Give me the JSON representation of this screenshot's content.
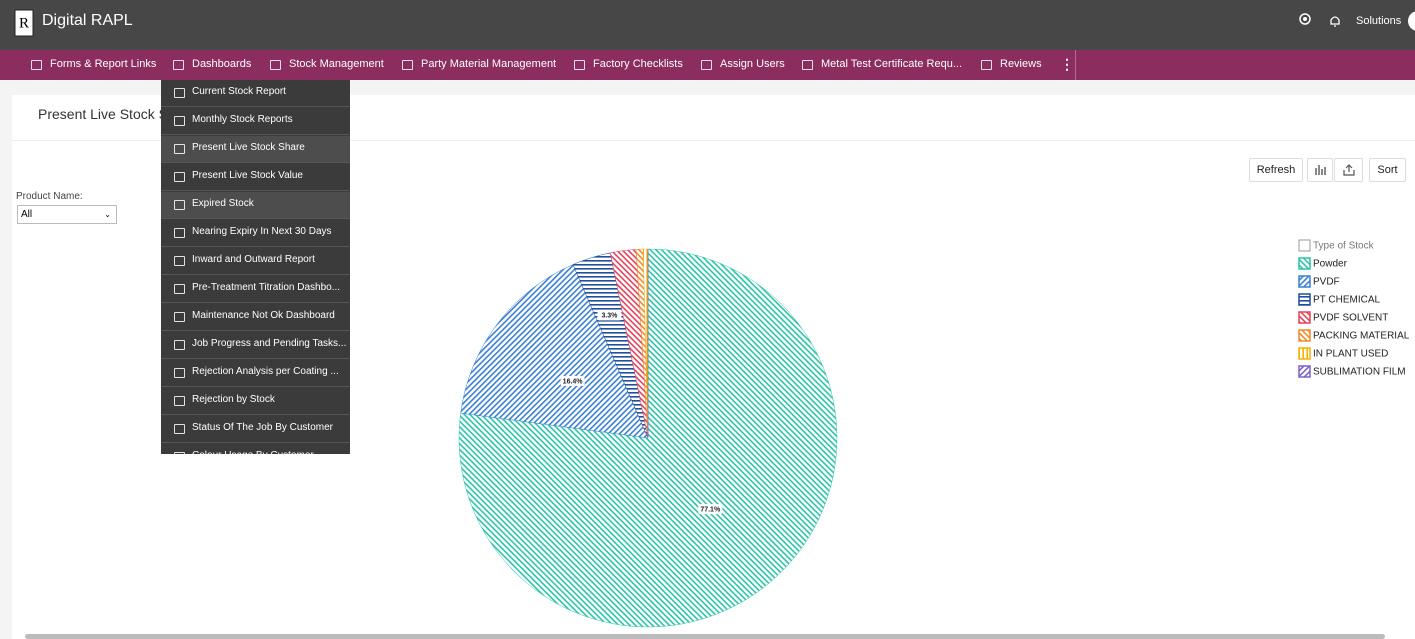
{
  "header": {
    "app_name": "Digital RAPL",
    "user_menu": "Solutions"
  },
  "nav": {
    "items": [
      "Forms & Report Links",
      "Dashboards",
      "Stock Management",
      "Party Material Management",
      "Factory Checklists",
      "Assign Users",
      "Metal Test Certificate Requ...",
      "Reviews"
    ],
    "dropdown": [
      "Current Stock Report",
      "Monthly Stock Reports",
      "Present Live Stock Share",
      "Present Live Stock Value",
      "Expired Stock",
      "Nearing Expiry In Next 30 Days",
      "Inward and Outward Report",
      "Pre-Treatment Titration Dashbo...",
      "Maintenance Not Ok Dashboard",
      "Job Progress and Pending Tasks...",
      "Rejection Analysis per Coating ...",
      "Rejection by Stock",
      "Status Of The Job By Customer",
      "Colour Usage By Customer"
    ]
  },
  "page": {
    "title": "Present Live Stock Share",
    "refresh": "Refresh",
    "sort": "Sort",
    "filter_label": "Product Name:",
    "filter_value": "All"
  },
  "chart_data": {
    "type": "pie",
    "legend_title": "Type of Stock",
    "legend": "right",
    "categories": [
      "Powder",
      "PVDF",
      "PT CHEMICAL",
      "PVDF SOLVENT",
      "PACKING MATERIAL",
      "IN PLANT USED",
      "SUBLIMATION FILM"
    ],
    "values": [
      77.1,
      16.4,
      3.3,
      2.2,
      0.6,
      0.4,
      0
    ],
    "value_labels": [
      "77.1%",
      "16.4%",
      "3.3%",
      null,
      null,
      null,
      null
    ],
    "colors": [
      "#2cc4a8",
      "#3b7fd6",
      "#1f4f9e",
      "#e2435c",
      "#f28a2a",
      "#f4b300",
      "#7d63c9"
    ]
  }
}
